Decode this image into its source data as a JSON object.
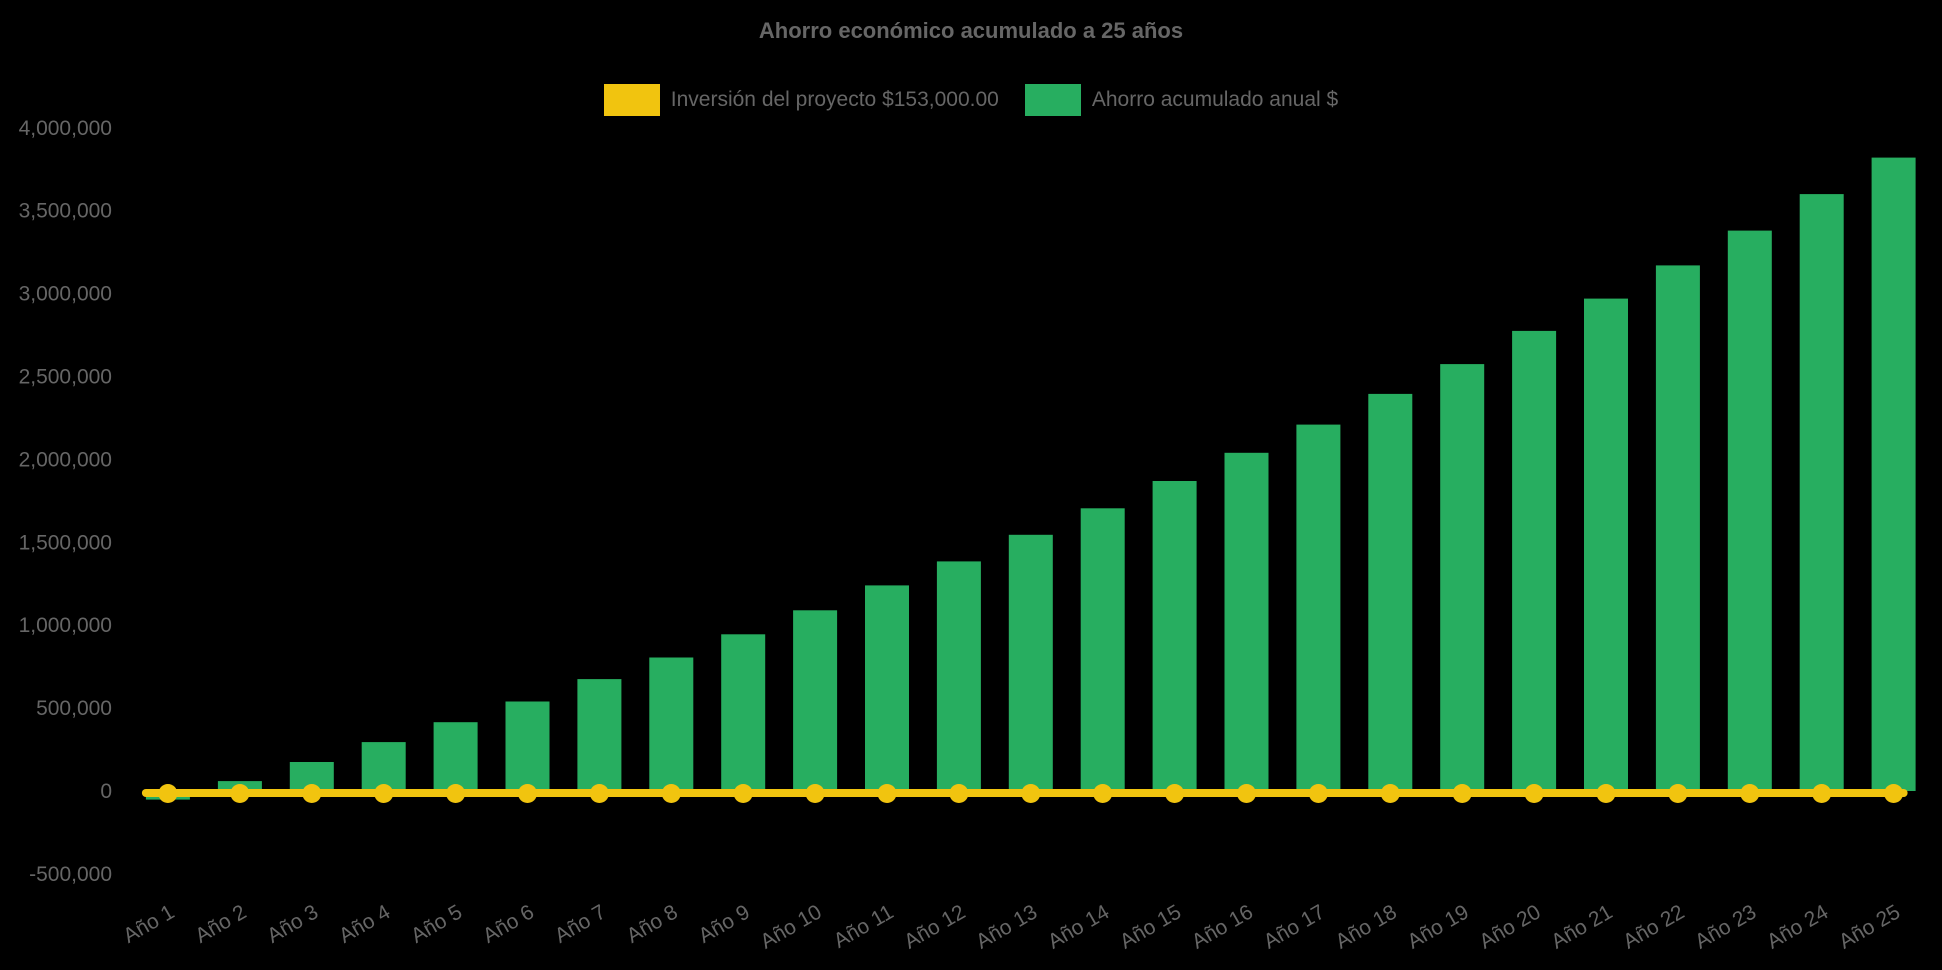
{
  "chart_data": {
    "type": "bar",
    "title": "Ahorro económico acumulado a 25 años",
    "categories": [
      "Año 1",
      "Año 2",
      "Año 3",
      "Año 4",
      "Año 5",
      "Año 6",
      "Año 7",
      "Año 8",
      "Año 9",
      "Año 10",
      "Año 11",
      "Año 12",
      "Año 13",
      "Año 14",
      "Año 15",
      "Año 16",
      "Año 17",
      "Año 18",
      "Año 19",
      "Año 20",
      "Año 21",
      "Año 22",
      "Año 23",
      "Año 24",
      "Año 25"
    ],
    "series": [
      {
        "name": "Inversión del proyecto $153,000.00",
        "type": "line",
        "color": "#f1c40f",
        "plotted_value": 0
      },
      {
        "name": "Ahorro acumulado anual $",
        "type": "bar",
        "color": "#27ae60",
        "values": [
          -52000,
          60000,
          175000,
          295000,
          415000,
          540000,
          675000,
          805000,
          945000,
          1090000,
          1240000,
          1385000,
          1545000,
          1705000,
          1870000,
          2040000,
          2210000,
          2395000,
          2575000,
          2775000,
          2970000,
          3170000,
          3380000,
          3600000,
          3820000
        ]
      }
    ],
    "ylim": [
      -500000,
      4000000
    ],
    "ytick_step": 500000,
    "ytick_labels": [
      "-500,000",
      "0",
      "500,000",
      "1,000,000",
      "1,500,000",
      "2,000,000",
      "2,500,000",
      "3,000,000",
      "3,500,000",
      "4,000,000"
    ],
    "xtick_rotation_deg": -30,
    "grid": false,
    "legend_position": "top",
    "background_color": "#000000",
    "text_color": "#666666"
  }
}
